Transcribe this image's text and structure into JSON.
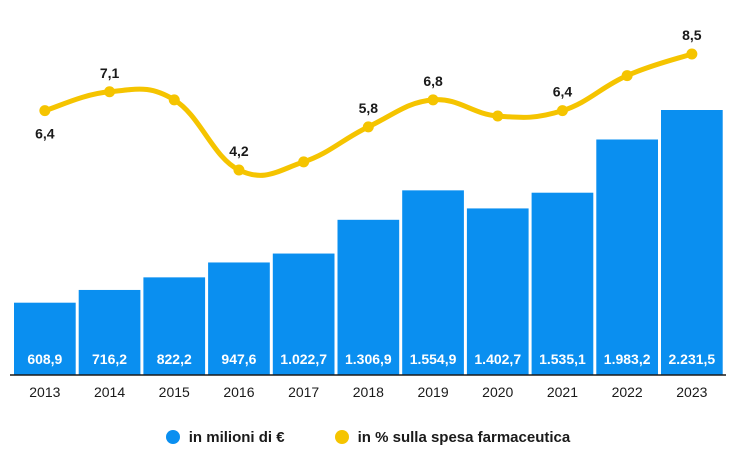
{
  "chart_data": {
    "type": "bar",
    "categories": [
      "2013",
      "2014",
      "2015",
      "2016",
      "2017",
      "2018",
      "2019",
      "2020",
      "2021",
      "2022",
      "2023"
    ],
    "series": [
      {
        "name": "in milioni di €",
        "type": "bar",
        "values": [
          608.9,
          716.2,
          822.2,
          947.6,
          1022.7,
          1306.9,
          1554.9,
          1402.7,
          1535.1,
          1983.2,
          2231.5
        ],
        "labels": [
          "608,9",
          "716,2",
          "822,2",
          "947,6",
          "1.022,7",
          "1.306,9",
          "1.554,9",
          "1.402,7",
          "1.535,1",
          "1.983,2",
          "2.231,5"
        ],
        "color": "#0a8ff0"
      },
      {
        "name": "in % sulla spesa farmaceutica",
        "type": "line",
        "values": [
          6.4,
          7.1,
          6.8,
          4.2,
          4.5,
          5.8,
          6.8,
          6.2,
          6.4,
          7.7,
          8.5
        ],
        "labels": [
          "6,4",
          "7,1",
          "",
          "4,2",
          "",
          "5,8",
          "6,8",
          "",
          "6,4",
          "",
          "8,5"
        ],
        "color": "#f5c400"
      }
    ],
    "title": "",
    "xlabel": "",
    "ylabel": "",
    "grid": false,
    "legend": "bottom-center"
  },
  "legend": {
    "items": [
      {
        "label": "in milioni di €",
        "color": "#0a8ff0"
      },
      {
        "label": "in % sulla spesa farmaceutica",
        "color": "#f5c400"
      }
    ]
  }
}
